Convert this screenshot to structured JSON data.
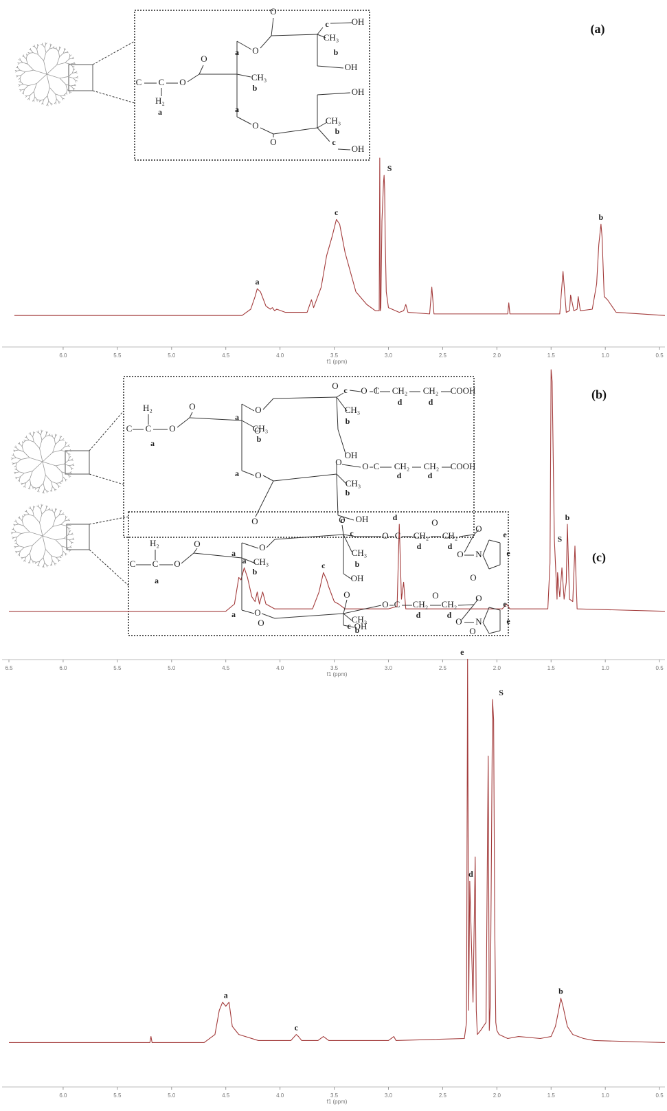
{
  "chart_data": [
    {
      "type": "line",
      "panel_label": "(a)",
      "xlabel": "f1 (ppm)",
      "color": "#a33b3b",
      "xlim": [
        6.5,
        0.45
      ],
      "ylim": [
        -20,
        100
      ],
      "xticks": [
        {
          "value": 6,
          "label": "6.0"
        },
        {
          "value": 5.5,
          "label": "5.5"
        },
        {
          "value": 5,
          "label": "5.0"
        },
        {
          "value": 4.5,
          "label": "4.5"
        },
        {
          "value": 4,
          "label": "4.0"
        },
        {
          "value": 3.5,
          "label": "3.5"
        },
        {
          "value": 3,
          "label": "3.0"
        },
        {
          "value": 2.5,
          "label": "2.5"
        },
        {
          "value": 2,
          "label": "2.0"
        },
        {
          "value": 1.5,
          "label": "1.5"
        },
        {
          "value": 1,
          "label": "1.0"
        },
        {
          "value": 0.5,
          "label": "0.5"
        }
      ],
      "x": [
        6.45,
        4.35,
        4.27,
        4.23,
        4.21,
        4.18,
        4.13,
        4.09,
        4.07,
        4.05,
        4.03,
        3.95,
        3.75,
        3.71,
        3.69,
        3.62,
        3.57,
        3.52,
        3.48,
        3.45,
        3.4,
        3.3,
        3.2,
        3.12,
        3.085,
        3.08,
        3.075,
        3.07,
        3.06,
        3.045,
        3.04,
        3.035,
        3.03,
        3.02,
        3.0,
        2.9,
        2.86,
        2.84,
        2.82,
        2.62,
        2.6,
        2.58,
        2.2,
        1.9,
        1.89,
        1.88,
        1.42,
        1.39,
        1.36,
        1.33,
        1.32,
        1.29,
        1.26,
        1.25,
        1.23,
        1.12,
        1.08,
        1.06,
        1.04,
        1.03,
        1.01,
        0.98,
        0.9,
        0.45
      ],
      "values": [
        0,
        0,
        4,
        12,
        17,
        15,
        6,
        4,
        5,
        3,
        4,
        2,
        2,
        10,
        5,
        18,
        38,
        50,
        61,
        58,
        40,
        15,
        7,
        3,
        3,
        100,
        3,
        5,
        60,
        85,
        89,
        80,
        50,
        15,
        5,
        2,
        3,
        7,
        2,
        1,
        18,
        1,
        1,
        1,
        8,
        1,
        1,
        28,
        2,
        3,
        13,
        3,
        4,
        12,
        3,
        4,
        20,
        45,
        58,
        50,
        12,
        10,
        2,
        0
      ],
      "annotations": [
        {
          "text": "a",
          "x": 4.21,
          "y": 17
        },
        {
          "text": "c",
          "x": 3.48,
          "y": 61
        },
        {
          "text": "S",
          "x": 2.99,
          "y": 89
        },
        {
          "text": "b",
          "x": 1.04,
          "y": 58
        }
      ],
      "structure": [
        "O",
        "c",
        "OH",
        "a",
        "O",
        "CH₃",
        "b",
        "OH",
        "O",
        "C",
        "C",
        "O",
        "CH₃",
        "b",
        "H₂",
        "a",
        "a",
        "O",
        "OH",
        "CH₃",
        "b",
        "O",
        "c",
        "OH"
      ]
    },
    {
      "type": "line",
      "panel_label": "(b)",
      "xlabel": "f1 (ppm)",
      "color": "#a33b3b",
      "xlim": [
        6.5,
        0.45
      ],
      "ylim": [
        -20,
        100
      ],
      "xticks": [
        {
          "value": 6.5,
          "label": "6.5"
        },
        {
          "value": 6,
          "label": "6.0"
        },
        {
          "value": 5.5,
          "label": "5.5"
        },
        {
          "value": 5,
          "label": "5.0"
        },
        {
          "value": 4.5,
          "label": "4.5"
        },
        {
          "value": 4,
          "label": "4.0"
        },
        {
          "value": 3.5,
          "label": "3.5"
        },
        {
          "value": 3,
          "label": "3.0"
        },
        {
          "value": 2.5,
          "label": "2.5"
        },
        {
          "value": 2,
          "label": "2.0"
        },
        {
          "value": 1.5,
          "label": "1.5"
        },
        {
          "value": 1,
          "label": "1.0"
        },
        {
          "value": 0.5,
          "label": "0.5"
        }
      ],
      "x": [
        6.5,
        4.5,
        4.42,
        4.38,
        4.36,
        4.33,
        4.3,
        4.26,
        4.23,
        4.21,
        4.19,
        4.16,
        4.13,
        4.05,
        3.7,
        3.64,
        3.6,
        3.57,
        3.55,
        3.5,
        3.46,
        3.4,
        3.0,
        2.92,
        2.9,
        2.88,
        2.86,
        2.84,
        1.95,
        1.91,
        1.88,
        1.53,
        1.51,
        1.5,
        1.49,
        1.47,
        1.445,
        1.44,
        1.42,
        1.4,
        1.38,
        1.36,
        1.35,
        1.33,
        1.3,
        1.28,
        1.26,
        0.45
      ],
      "values": [
        0,
        0,
        3,
        14,
        13,
        18,
        14,
        6,
        4,
        8,
        3,
        8,
        3,
        1,
        1,
        8,
        16,
        13,
        10,
        4,
        3,
        1,
        1,
        2,
        36,
        5,
        12,
        1,
        1,
        3,
        1,
        1,
        20,
        100,
        95,
        30,
        5,
        16,
        6,
        18,
        5,
        12,
        36,
        5,
        4,
        27,
        1,
        0
      ],
      "annotations": [
        {
          "text": "a",
          "x": 4.33,
          "y": 18
        },
        {
          "text": "c",
          "x": 3.6,
          "y": 16
        },
        {
          "text": "d",
          "x": 2.94,
          "y": 36
        },
        {
          "text": "S",
          "x": 1.42,
          "y": 27
        },
        {
          "text": "b",
          "x": 1.35,
          "y": 36
        }
      ],
      "structure": [
        "O",
        "c",
        "O",
        "C",
        "CH₂",
        "d",
        "CH₂",
        "d",
        "COOH",
        "O",
        "a",
        "O",
        "CH₃",
        "b",
        "H₂",
        "C",
        "C",
        "O",
        "O",
        "CH₃",
        "b",
        "a",
        "OH",
        "O",
        "O",
        "C",
        "CH₂",
        "d",
        "CH₂",
        "d",
        "COOH",
        "a",
        "O",
        "CH₃",
        "b",
        "O",
        "c",
        "OH"
      ]
    },
    {
      "type": "line",
      "panel_label": "(c)",
      "xlabel": "f1 (ppm)",
      "color": "#a33b3b",
      "xlim": [
        6.5,
        0.45
      ],
      "ylim": [
        -11,
        100
      ],
      "xticks": [
        {
          "value": 6,
          "label": "6.0"
        },
        {
          "value": 5.5,
          "label": "5.5"
        },
        {
          "value": 5,
          "label": "5.0"
        },
        {
          "value": 4.5,
          "label": "4.5"
        },
        {
          "value": 4,
          "label": "4.0"
        },
        {
          "value": 3.5,
          "label": "3.5"
        },
        {
          "value": 3,
          "label": "3.0"
        },
        {
          "value": 2.5,
          "label": "2.5"
        },
        {
          "value": 2,
          "label": "2.0"
        },
        {
          "value": 1.5,
          "label": "1.5"
        },
        {
          "value": 1,
          "label": "1.0"
        },
        {
          "value": 0.5,
          "label": "0.5"
        }
      ],
      "x": [
        6.5,
        5.2,
        5.19,
        5.18,
        4.7,
        4.6,
        4.56,
        4.53,
        4.5,
        4.47,
        4.44,
        4.38,
        4.2,
        3.9,
        3.85,
        3.83,
        3.8,
        3.65,
        3.6,
        3.55,
        3.0,
        2.95,
        2.93,
        2.3,
        2.28,
        2.27,
        2.26,
        2.25,
        2.24,
        2.22,
        2.2,
        2.19,
        2.18,
        2.15,
        2.1,
        2.08,
        2.07,
        2.06,
        2.04,
        2.03,
        2.02,
        2.01,
        2.0,
        1.98,
        1.9,
        1.8,
        1.6,
        1.5,
        1.46,
        1.43,
        1.41,
        1.39,
        1.35,
        1.3,
        1.25,
        1.2,
        1.1,
        0.45
      ],
      "values": [
        0,
        0,
        1.5,
        0,
        0,
        2,
        8,
        10,
        9,
        10,
        4,
        2,
        0.5,
        0.5,
        2,
        1.5,
        0.5,
        0.5,
        1.5,
        0.5,
        0.5,
        1.5,
        0.5,
        1,
        5,
        95,
        8,
        40,
        30,
        10,
        46,
        8,
        2,
        3,
        5,
        71,
        3,
        10,
        85,
        80,
        30,
        5,
        3,
        2,
        1,
        1.5,
        1,
        1.5,
        4,
        8,
        11,
        9,
        4,
        2,
        1.5,
        1,
        0.5,
        0
      ],
      "annotations": [
        {
          "text": "a",
          "x": 4.5,
          "y": 10
        },
        {
          "text": "c",
          "x": 3.85,
          "y": 2
        },
        {
          "text": "e",
          "x": 2.32,
          "y": 95
        },
        {
          "text": "d",
          "x": 2.24,
          "y": 40
        },
        {
          "text": "S",
          "x": 1.96,
          "y": 85
        },
        {
          "text": "b",
          "x": 1.41,
          "y": 11
        }
      ],
      "structure": [
        "O",
        "O",
        "O",
        "c",
        "O",
        "C",
        "CH₂",
        "d",
        "CH₂",
        "d",
        "e",
        "O",
        "e",
        "O",
        "N",
        "H₂",
        "a",
        "O",
        "CH₃",
        "b",
        "C",
        "C",
        "O",
        "CH₃",
        "b",
        "OH",
        "O",
        "a",
        "O",
        "O",
        "O",
        "O",
        "C",
        "CH₂",
        "d",
        "CH₂",
        "d",
        "e",
        "O",
        "N",
        "e",
        "a",
        "O",
        "CH₃",
        "b",
        "O",
        "c",
        "OH",
        "O"
      ]
    }
  ]
}
